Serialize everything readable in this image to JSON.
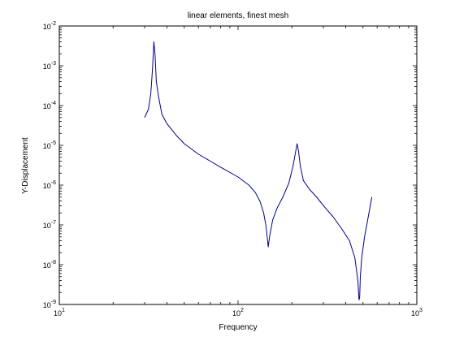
{
  "chart_data": {
    "type": "line",
    "title": "linear elements, finest mesh",
    "xlabel": "Frequency",
    "ylabel": "Y-Displacement",
    "xscale": "log",
    "yscale": "log",
    "xlim": [
      10,
      1000
    ],
    "ylim": [
      1e-09,
      0.01
    ],
    "grid": false,
    "legend": "none",
    "x_ticks": [
      {
        "base": "10",
        "exp": "1"
      },
      {
        "base": "10",
        "exp": "2"
      },
      {
        "base": "10",
        "exp": "3"
      }
    ],
    "y_ticks": [
      {
        "base": "10",
        "exp": "-9"
      },
      {
        "base": "10",
        "exp": "-8"
      },
      {
        "base": "10",
        "exp": "-7"
      },
      {
        "base": "10",
        "exp": "-6"
      },
      {
        "base": "10",
        "exp": "-5"
      },
      {
        "base": "10",
        "exp": "-4"
      },
      {
        "base": "10",
        "exp": "-3"
      },
      {
        "base": "10",
        "exp": "-2"
      }
    ],
    "series": [
      {
        "color": "#00008b",
        "x": [
          30.0,
          31.5,
          32.5,
          33.2,
          33.8,
          34.3,
          34.9,
          35.8,
          37.5,
          40.0,
          45.0,
          50.0,
          60.0,
          70.0,
          80.0,
          100.0,
          115.0,
          125.0,
          133.0,
          139.0,
          143.0,
          145.5,
          147.5,
          150.0,
          156.0,
          165.0,
          178.0,
          192.0,
          203.0,
          210.0,
          214.0,
          218.0,
          223.0,
          232.0,
          250.0,
          275.0,
          305.0,
          340.0,
          380.0,
          420.0,
          450.0,
          468.0,
          475.0,
          479.0,
          483.0,
          492.0,
          510.0,
          535.0,
          560.0
        ],
        "y": [
          5e-05,
          8e-05,
          0.0002,
          0.0008,
          0.004,
          0.002,
          0.0004,
          0.00018,
          6e-05,
          3.5e-05,
          1.8e-05,
          1.1e-05,
          6e-06,
          4e-06,
          2.8e-06,
          1.6e-06,
          1e-06,
          6.5e-07,
          3.8e-07,
          2e-07,
          1e-07,
          5e-08,
          2.8e-08,
          5e-08,
          1.3e-07,
          2.6e-07,
          5e-07,
          1.1e-06,
          3e-06,
          7e-06,
          1.1e-05,
          7e-06,
          3e-06,
          1.3e-06,
          8e-07,
          5e-07,
          2.8e-07,
          1.6e-07,
          8e-08,
          4e-08,
          1.5e-08,
          4e-09,
          1.3e-09,
          1.5e-09,
          5e-09,
          1.5e-08,
          5e-08,
          1.6e-07,
          5e-07
        ]
      }
    ]
  }
}
